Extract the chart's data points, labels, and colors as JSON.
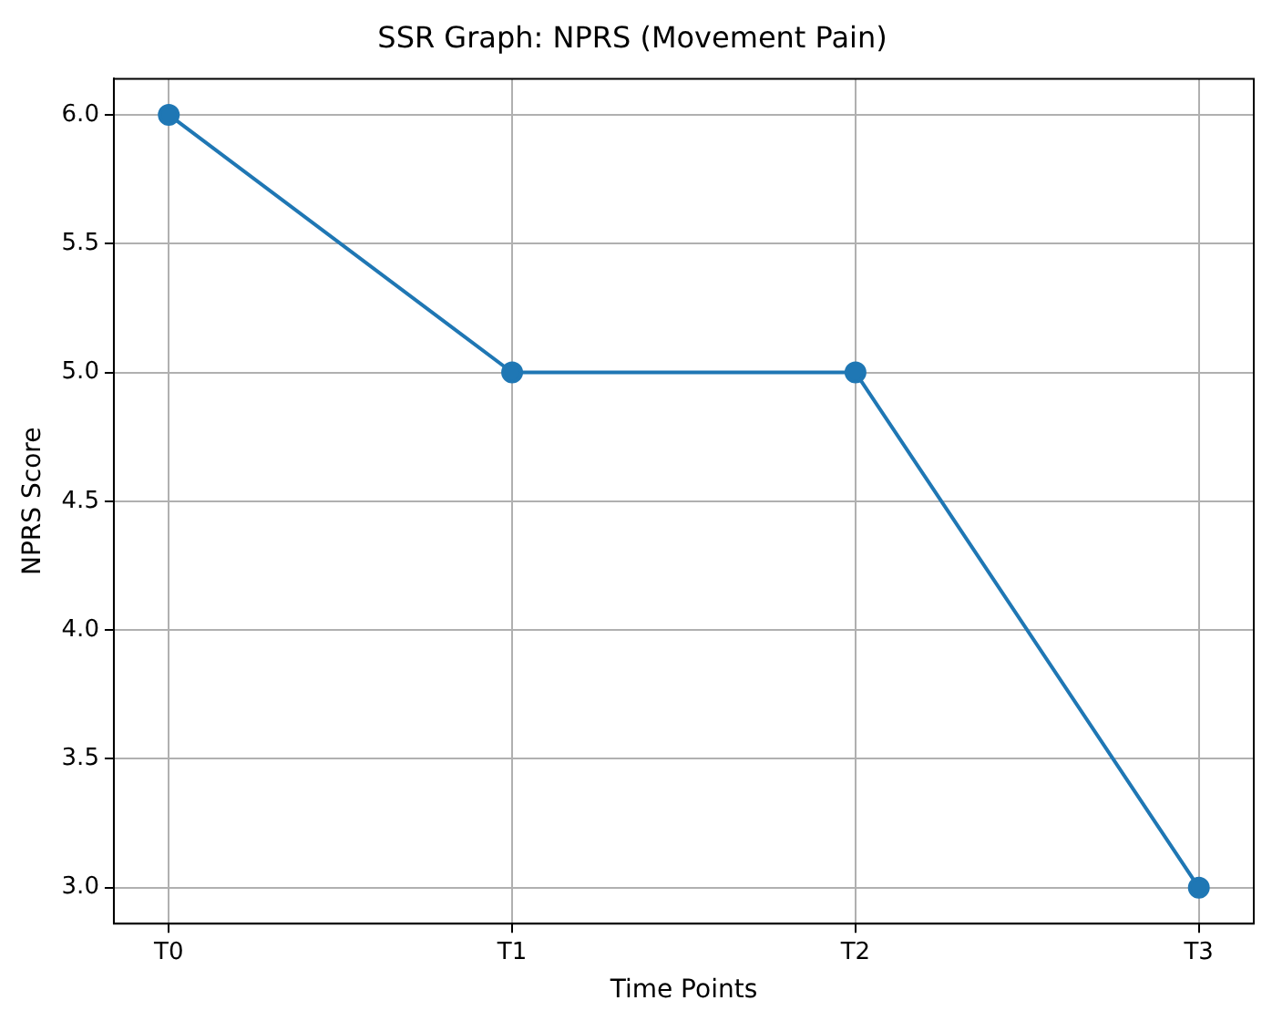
{
  "chart_data": {
    "type": "line",
    "title": "SSR Graph: NPRS (Movement Pain)",
    "xlabel": "Time Points",
    "ylabel": "NPRS Score",
    "categories": [
      "T0",
      "T1",
      "T2",
      "T3"
    ],
    "series": [
      {
        "color": "#1f77b4",
        "values": [
          6.0,
          5.0,
          5.0,
          3.0
        ]
      }
    ],
    "ylim": [
      2.86,
      6.14
    ],
    "yticks": [
      {
        "value": 3.0,
        "label": "3.0"
      },
      {
        "value": 3.5,
        "label": "3.5"
      },
      {
        "value": 4.0,
        "label": "4.0"
      },
      {
        "value": 4.5,
        "label": "4.5"
      },
      {
        "value": 5.0,
        "label": "5.0"
      },
      {
        "value": 5.5,
        "label": "5.5"
      },
      {
        "value": 6.0,
        "label": "6.0"
      }
    ],
    "grid": true,
    "marker": "circle",
    "line_style": "solid"
  }
}
